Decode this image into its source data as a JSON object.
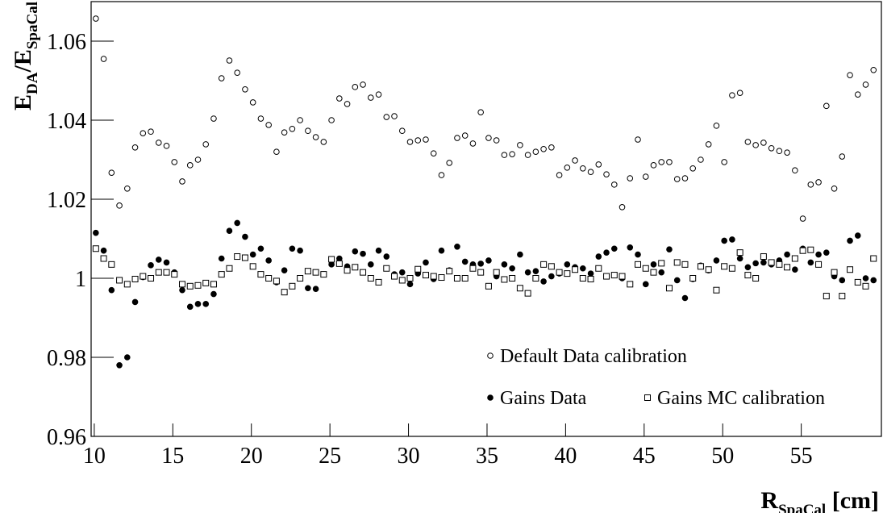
{
  "chart_data": {
    "type": "scatter",
    "x_label": [
      "R",
      "SpaCal",
      " [cm]"
    ],
    "y_label": [
      "E",
      "DA",
      "/E",
      "SpaCal"
    ],
    "xlim": [
      9.8,
      60.1
    ],
    "ylim": [
      0.96,
      1.07
    ],
    "xticks": [
      10,
      15,
      20,
      25,
      30,
      35,
      40,
      45,
      50,
      55
    ],
    "yticks": [
      0.96,
      0.98,
      1,
      1.02,
      1.04,
      1.06
    ],
    "x": [
      10.1,
      10.6,
      11.1,
      11.6,
      12.1,
      12.6,
      13.1,
      13.6,
      14.1,
      14.6,
      15.1,
      15.6,
      16.1,
      16.6,
      17.1,
      17.6,
      18.1,
      18.6,
      19.1,
      19.6,
      20.1,
      20.6,
      21.1,
      21.6,
      22.1,
      22.6,
      23.1,
      23.6,
      24.1,
      24.6,
      25.1,
      25.6,
      26.1,
      26.6,
      27.1,
      27.6,
      28.1,
      28.6,
      29.1,
      29.6,
      30.1,
      30.6,
      31.1,
      31.6,
      32.1,
      32.6,
      33.1,
      33.6,
      34.1,
      34.6,
      35.1,
      35.6,
      36.1,
      36.6,
      37.1,
      37.6,
      38.1,
      38.6,
      39.1,
      39.6,
      40.1,
      40.6,
      41.1,
      41.6,
      42.1,
      42.6,
      43.1,
      43.6,
      44.1,
      44.6,
      45.1,
      45.6,
      46.1,
      46.6,
      47.1,
      47.6,
      48.1,
      48.6,
      49.1,
      49.6,
      50.1,
      50.6,
      51.1,
      51.6,
      52.1,
      52.6,
      53.1,
      53.6,
      54.1,
      54.6,
      55.1,
      55.6,
      56.1,
      56.6,
      57.1,
      57.6,
      58.1,
      58.6,
      59.1,
      59.6
    ],
    "series": [
      {
        "name": "Default Data calibration",
        "marker": "open-circle",
        "color": "#000000",
        "values": [
          1.0657,
          1.0555,
          1.0267,
          1.0184,
          1.0227,
          1.0331,
          1.0367,
          1.0371,
          1.0343,
          1.0335,
          1.0294,
          1.0245,
          1.0286,
          1.03,
          1.0339,
          1.0404,
          1.0506,
          1.0551,
          1.052,
          1.0478,
          1.0445,
          1.0404,
          1.0388,
          1.032,
          1.0369,
          1.0378,
          1.04,
          1.0373,
          1.0357,
          1.0345,
          1.04,
          1.0455,
          1.0441,
          1.0484,
          1.049,
          1.0457,
          1.0465,
          1.0408,
          1.041,
          1.0373,
          1.0345,
          1.0349,
          1.0351,
          1.0316,
          1.0261,
          1.0292,
          1.0355,
          1.0361,
          1.0341,
          1.042,
          1.0355,
          1.0349,
          1.0312,
          1.0314,
          1.0337,
          1.0312,
          1.032,
          1.0327,
          1.0331,
          1.0261,
          1.028,
          1.0298,
          1.0278,
          1.0269,
          1.0288,
          1.0263,
          1.0237,
          1.018,
          1.0253,
          1.0351,
          1.0257,
          1.0286,
          1.0294,
          1.0294,
          1.0251,
          1.0253,
          1.0278,
          1.03,
          1.0339,
          1.0386,
          1.0294,
          1.0463,
          1.0469,
          1.0345,
          1.0337,
          1.0343,
          1.0329,
          1.0322,
          1.0318,
          1.0273,
          1.0151,
          1.0237,
          1.0243,
          1.0436,
          1.0227,
          1.0308,
          1.0514,
          1.0465,
          1.049,
          1.0527
        ]
      },
      {
        "name": "Gains Data",
        "marker": "filled-circle",
        "color": "#000000",
        "values": [
          1.0115,
          1.007,
          0.997,
          0.978,
          0.98,
          0.994,
          1.0003,
          1.0033,
          1.0047,
          1.004,
          1.0015,
          0.997,
          0.9928,
          0.9935,
          0.9935,
          0.996,
          1.005,
          1.012,
          1.014,
          1.0105,
          1.006,
          1.0075,
          1.0045,
          0.999,
          1.002,
          1.0075,
          1.007,
          0.9975,
          0.9973,
          1.001,
          1.0035,
          1.005,
          1.003,
          1.0068,
          1.0062,
          1.0035,
          1.007,
          1.0055,
          1.001,
          1.0015,
          0.9985,
          1.0012,
          1.004,
          0.9998,
          1.007,
          1.002,
          1.008,
          1.0042,
          1.0035,
          1.0037,
          1.0045,
          1.0005,
          1.0035,
          1.0025,
          1.006,
          1.0015,
          1.0018,
          0.9992,
          1.0005,
          1.0012,
          1.0035,
          1.0028,
          1.0025,
          1.0012,
          1.0055,
          1.0065,
          1.0075,
          1.0,
          1.0078,
          1.006,
          0.9985,
          1.0035,
          1.0015,
          1.0073,
          0.9995,
          0.995,
          0.9998,
          1.0032,
          1.002,
          1.0045,
          1.0095,
          1.0098,
          1.005,
          1.0028,
          1.0038,
          1.004,
          1.0035,
          1.0045,
          1.006,
          1.0022,
          1.0075,
          1.004,
          1.006,
          1.0065,
          1.0005,
          0.9995,
          1.0095,
          1.0108,
          1.0,
          0.9995
        ]
      },
      {
        "name": "Gains MC calibration",
        "marker": "open-square",
        "color": "#000000",
        "values": [
          1.0075,
          1.005,
          1.0035,
          0.9995,
          0.9985,
          0.9998,
          1.0005,
          1.0,
          1.0015,
          1.0015,
          1.001,
          0.9985,
          0.998,
          0.9982,
          0.9988,
          0.9985,
          1.001,
          1.0025,
          1.0055,
          1.0052,
          1.003,
          1.001,
          1.0,
          0.9993,
          0.9965,
          0.998,
          1.0,
          1.0018,
          1.0015,
          1.001,
          1.0048,
          1.0037,
          1.002,
          1.0028,
          1.0015,
          1.0,
          0.999,
          1.0025,
          1.0005,
          0.9995,
          1.0,
          1.0023,
          1.0008,
          1.0005,
          1.0002,
          1.0018,
          1.0,
          1.0,
          1.0025,
          1.0015,
          0.998,
          1.0015,
          0.9997,
          1.0,
          0.9975,
          0.9962,
          1.0,
          1.0035,
          1.003,
          1.0015,
          1.0012,
          1.0022,
          1.0,
          0.9998,
          1.0025,
          1.0005,
          1.0008,
          1.0005,
          0.9985,
          1.0035,
          1.0025,
          1.0015,
          1.0038,
          0.9975,
          1.004,
          1.0035,
          1.0,
          1.003,
          1.0022,
          0.997,
          1.003,
          1.0025,
          1.0065,
          1.0008,
          1.0,
          1.0055,
          1.004,
          1.0035,
          1.0028,
          1.005,
          1.007,
          1.0072,
          1.0035,
          0.9955,
          1.0015,
          0.9955,
          1.0022,
          0.999,
          0.998,
          1.005
        ]
      }
    ]
  }
}
